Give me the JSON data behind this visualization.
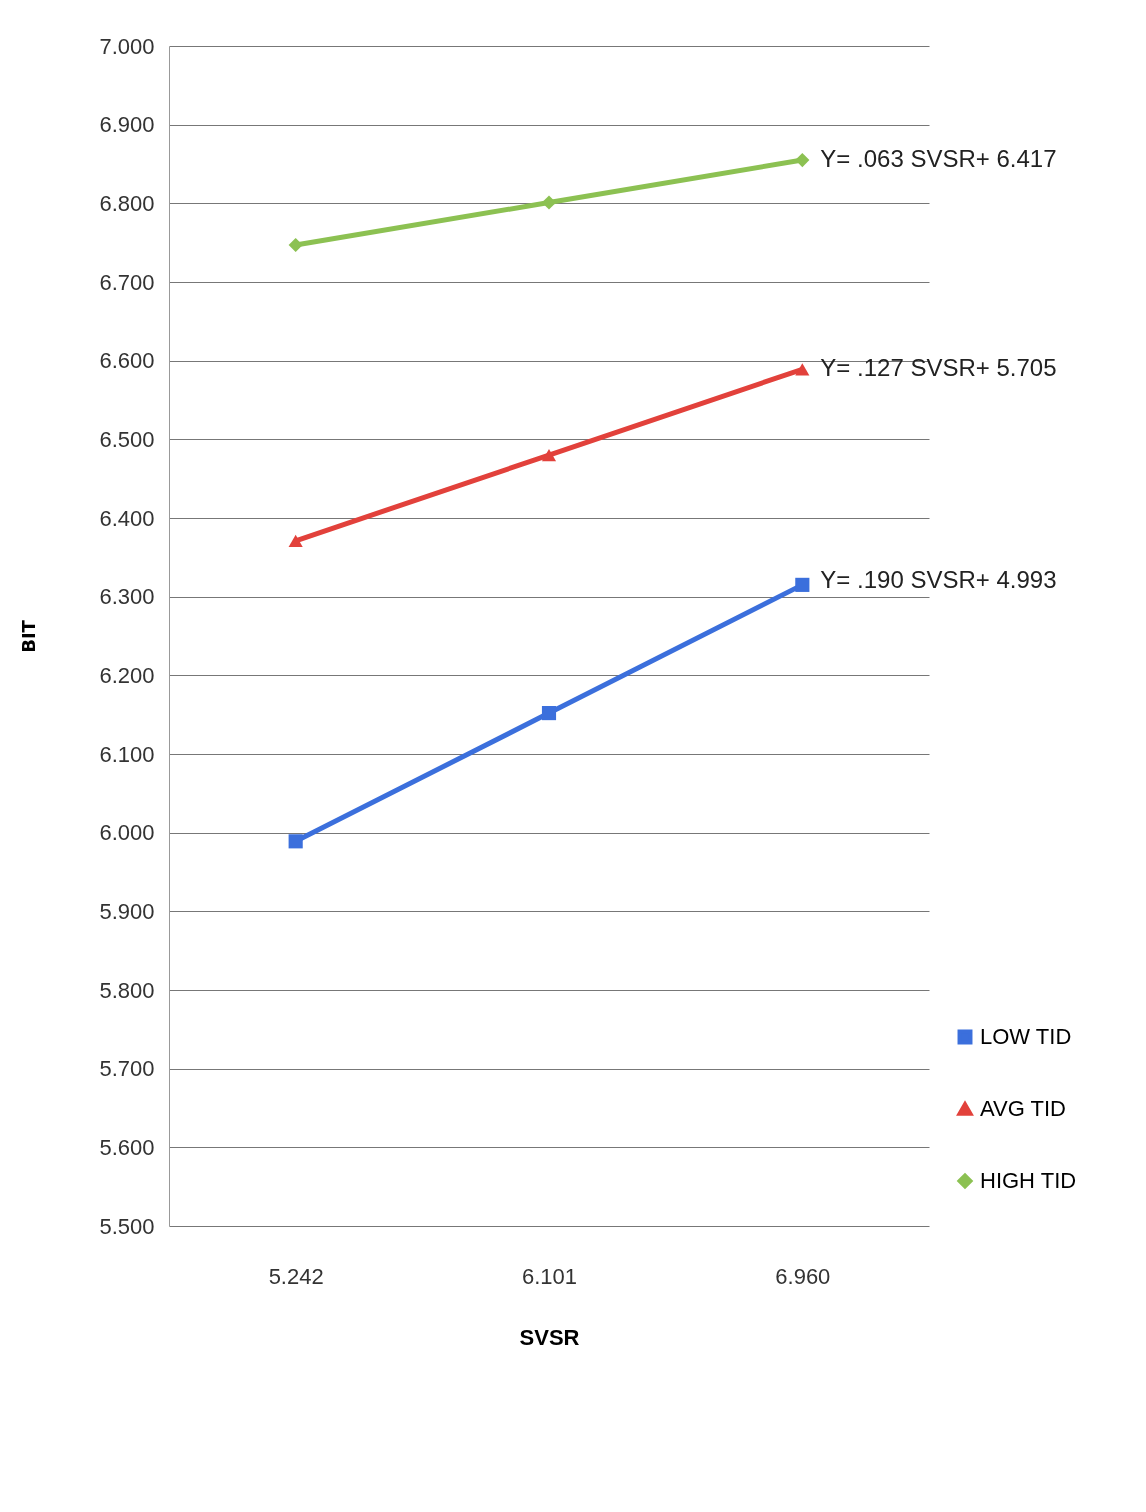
{
  "chart_data": {
    "type": "line",
    "xlabel": "SVSR",
    "ylabel": "BIT",
    "categories": [
      "5.242",
      "6.101",
      "6.960"
    ],
    "series": [
      {
        "name": "LOW TID",
        "color": "#3b6fdc",
        "marker": "square",
        "values": [
          5.989,
          6.152,
          6.315
        ]
      },
      {
        "name": "AVG TID",
        "color": "#e2413b",
        "marker": "triangle",
        "values": [
          6.371,
          6.48,
          6.589
        ]
      },
      {
        "name": "HIGH TID",
        "color": "#8cc152",
        "marker": "diamond",
        "values": [
          6.747,
          6.801,
          6.855
        ]
      }
    ],
    "ylim": [
      5.5,
      7.0
    ],
    "yticks": [
      {
        "value": 5.5,
        "label": "5.500"
      },
      {
        "value": 5.6,
        "label": "5.600"
      },
      {
        "value": 5.7,
        "label": "5.700"
      },
      {
        "value": 5.8,
        "label": "5.800"
      },
      {
        "value": 5.9,
        "label": "5.900"
      },
      {
        "value": 6.0,
        "label": "6.000"
      },
      {
        "value": 6.1,
        "label": "6.100"
      },
      {
        "value": 6.2,
        "label": "6.200"
      },
      {
        "value": 6.3,
        "label": "6.300"
      },
      {
        "value": 6.4,
        "label": "6.400"
      },
      {
        "value": 6.5,
        "label": "6.500"
      },
      {
        "value": 6.6,
        "label": "6.600"
      },
      {
        "value": 6.7,
        "label": "6.700"
      },
      {
        "value": 6.8,
        "label": "6.800"
      },
      {
        "value": 6.9,
        "label": "6.900"
      },
      {
        "value": 7.0,
        "label": "7.000"
      }
    ],
    "annotations": [
      {
        "text": "Y= .063 SVSR+ 6.417",
        "x": "6.960",
        "y": 6.855
      },
      {
        "text": "Y= .127 SVSR+ 5.705",
        "x": "6.960",
        "y": 6.59
      },
      {
        "text": "Y= .190 SVSR+ 4.993",
        "x": "6.960",
        "y": 6.32
      }
    ],
    "grid": "y",
    "legend": "bottom right",
    "line_style": "solid"
  }
}
